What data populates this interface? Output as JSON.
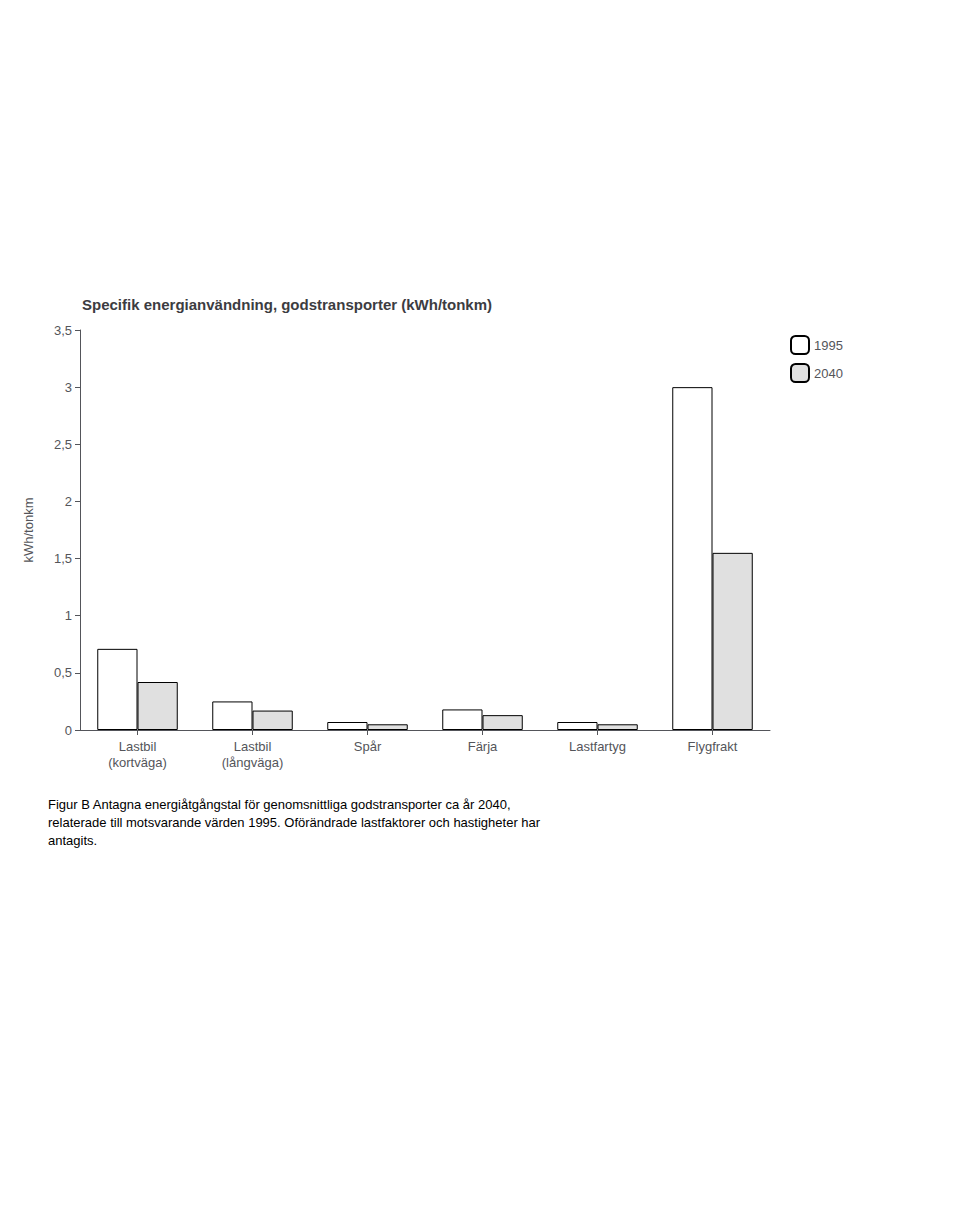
{
  "chart_data": {
    "type": "bar",
    "title": "Specifik energianvändning, godstransporter (kWh/tonkm)",
    "ylabel": "kWh/tonkm",
    "categories": [
      "Lastbil\n(kortväga)",
      "Lastbil\n(långväga)",
      "Spår",
      "Färja",
      "Lastfartyg",
      "Flygfrakt"
    ],
    "series": [
      {
        "name": "1995",
        "color": "#ffffff",
        "values": [
          0.71,
          0.25,
          0.07,
          0.18,
          0.07,
          3.0
        ]
      },
      {
        "name": "2040",
        "color": "#e0e0e0",
        "values": [
          0.42,
          0.17,
          0.05,
          0.13,
          0.05,
          1.55
        ]
      }
    ],
    "ylim": [
      0,
      3.5
    ],
    "yticks": [
      0,
      {
        "value": 0.5,
        "label": "0,5"
      },
      1,
      {
        "value": 1.5,
        "label": "1,5"
      },
      2,
      {
        "value": 2.5,
        "label": "2,5"
      },
      3,
      {
        "value": 3.5,
        "label": "3,5"
      }
    ],
    "grid": false,
    "legend": "upper right",
    "annotations": [
      "Figur B Antagna energiåtgångstal för genomsnittliga godstransporter ca år 2040,\nrelaterade till motsvarande värden 1995. Oförändrade lastfaktorer och hastigheter har\nantagits."
    ]
  }
}
